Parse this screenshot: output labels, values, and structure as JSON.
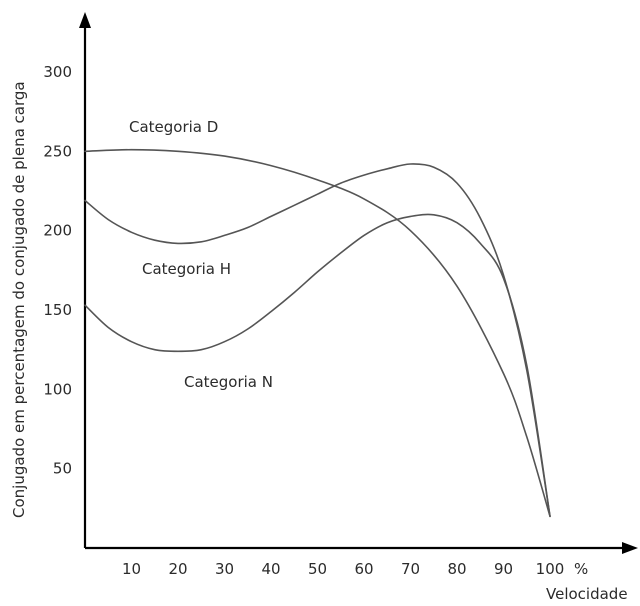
{
  "chart_data": {
    "type": "line",
    "title": "",
    "xlabel": "Velocidade",
    "ylabel": "Conjugado em percentagem do conjugado de plena carga",
    "x_unit": "%",
    "xlim": [
      0,
      100
    ],
    "ylim": [
      0,
      320
    ],
    "x_ticks": [
      10,
      20,
      30,
      40,
      50,
      60,
      70,
      80,
      90,
      100
    ],
    "y_ticks": [
      50,
      100,
      150,
      200,
      250,
      300
    ],
    "grid": false,
    "legend": "none",
    "series": [
      {
        "name": "Categoria D",
        "x": [
          0,
          10,
          20,
          30,
          40,
          50,
          60,
          70,
          80,
          90,
          95,
          100
        ],
        "y": [
          250,
          251,
          250,
          247,
          241,
          232,
          220,
          200,
          165,
          110,
          70,
          20
        ]
      },
      {
        "name": "Categoria H",
        "x": [
          0,
          5,
          10,
          15,
          20,
          25,
          30,
          35,
          40,
          45,
          50,
          55,
          60,
          65,
          70,
          75,
          80,
          85,
          90,
          95,
          100
        ],
        "y": [
          219,
          207,
          199,
          194,
          192,
          193,
          197,
          202,
          209,
          216,
          223,
          230,
          235,
          239,
          242,
          240,
          230,
          208,
          172,
          112,
          20
        ]
      },
      {
        "name": "Categoria N",
        "x": [
          0,
          5,
          10,
          15,
          20,
          25,
          30,
          35,
          40,
          45,
          50,
          55,
          60,
          65,
          70,
          75,
          80,
          85,
          90,
          95,
          100
        ],
        "y": [
          153,
          139,
          130,
          125,
          124,
          125,
          130,
          138,
          149,
          161,
          174,
          186,
          197,
          205,
          209,
          210,
          205,
          192,
          170,
          115,
          20
        ]
      }
    ]
  }
}
